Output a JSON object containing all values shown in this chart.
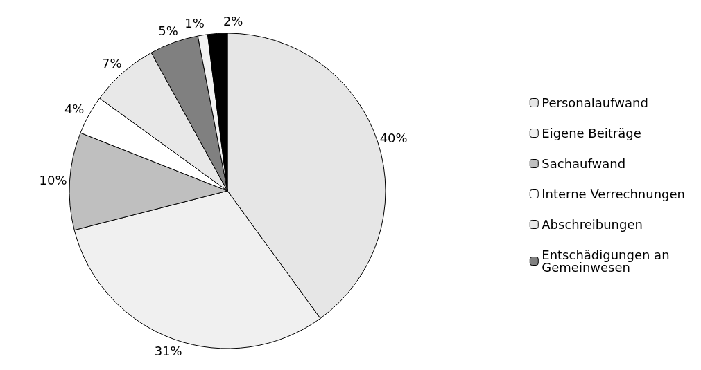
{
  "chart_data": {
    "type": "pie",
    "categories": [
      "Personalaufwand",
      "Eigene Beiträge",
      "Sachaufwand",
      "Interne Verrechnungen",
      "Abschreibungen",
      "Entschädigungen an Gemeinwesen",
      null,
      null
    ],
    "values": [
      40,
      31,
      10,
      4,
      7,
      5,
      1,
      2
    ],
    "colors": [
      "#e6e6e6",
      "#f0f0f0",
      "#bfbfbf",
      "#ffffff",
      "#e8e8e8",
      "#808080",
      "#f2f2f2",
      "#000000"
    ],
    "value_labels": [
      "40%",
      "31%",
      "10%",
      "4%",
      "7%",
      "5%",
      "1%",
      "2%"
    ],
    "legend": "right"
  }
}
